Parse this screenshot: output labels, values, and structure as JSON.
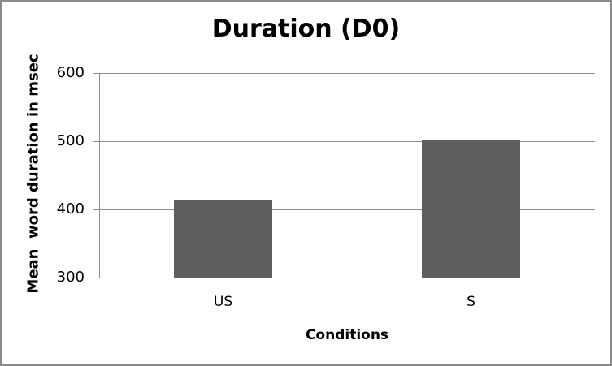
{
  "window": {
    "background": "#ffffff",
    "border_color": "#8a8a8a"
  },
  "chart_data": {
    "type": "bar",
    "title": "Duration (D0)",
    "xlabel": "Conditions",
    "ylabel": "Mean  word duration in msec",
    "categories": [
      "US",
      "S"
    ],
    "values": [
      413,
      501
    ],
    "ylim": [
      300,
      600
    ],
    "yticks": [
      300,
      400,
      500,
      600
    ],
    "grid": "horizontal",
    "legend_position": "none",
    "colors": {
      "bar": "#5f5f5f",
      "axis": "#8e8e8e",
      "gridline": "#8e8e8e",
      "text": "#000000"
    }
  }
}
